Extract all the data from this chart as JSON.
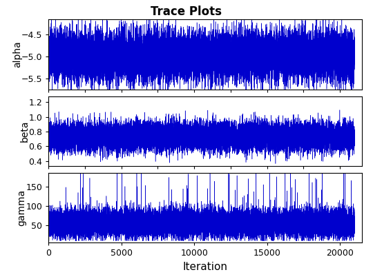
{
  "title": "Trace Plots",
  "title_fontsize": 12,
  "xlabel": "Iteration",
  "xlabel_fontsize": 11,
  "ylabel_fontsize": 10,
  "tick_fontsize": 9,
  "n_iterations": 21000,
  "params": [
    "alpha",
    "beta",
    "gamma"
  ],
  "line_color": "#0000CD",
  "line_width": 0.35,
  "alpha_mean": -4.98,
  "alpha_std": 0.28,
  "alpha_ylim": [
    -5.75,
    -4.15
  ],
  "alpha_yticks": [
    -5.5,
    -5.0,
    -4.5
  ],
  "beta_mean": 0.73,
  "beta_std": 0.1,
  "beta_ylim": [
    0.33,
    1.28
  ],
  "beta_yticks": [
    0.4,
    0.6,
    0.8,
    1.0,
    1.2
  ],
  "gamma_mean": 55.0,
  "gamma_std": 18.0,
  "gamma_ylim": [
    5,
    185
  ],
  "gamma_yticks": [
    50,
    100,
    150
  ],
  "xticks": [
    0,
    5000,
    10000,
    15000,
    20000
  ],
  "xlim": [
    0,
    21500
  ],
  "bg_color": "#ffffff",
  "plot_bg_color": "#ffffff",
  "seed": 42
}
